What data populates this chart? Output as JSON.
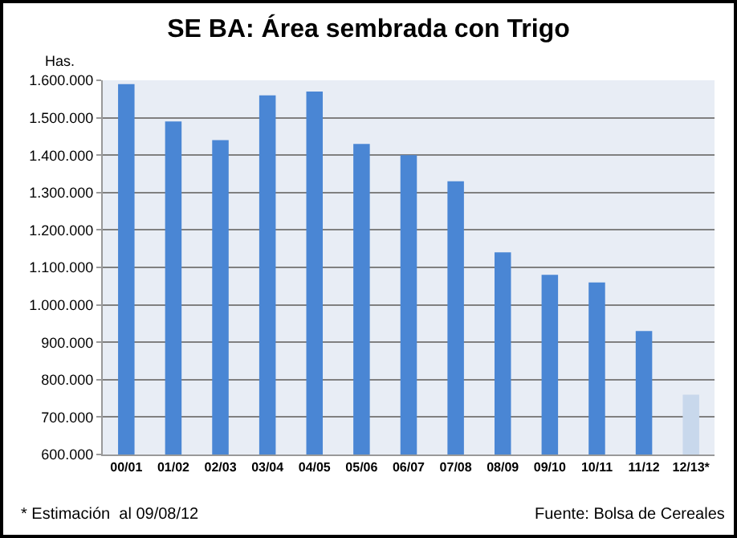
{
  "chart_data": {
    "type": "bar",
    "title": "SE BA: Área sembrada con Trigo",
    "ylabel": "Has.",
    "categories": [
      "00/01",
      "01/02",
      "02/03",
      "03/04",
      "04/05",
      "05/06",
      "06/07",
      "07/08",
      "08/09",
      "09/10",
      "10/11",
      "11/12",
      "12/13*"
    ],
    "values": [
      1590000,
      1490000,
      1440000,
      1560000,
      1570000,
      1430000,
      1400000,
      1330000,
      1140000,
      1080000,
      1060000,
      930000,
      760000
    ],
    "colors": [
      "#4a86d4",
      "#4a86d4",
      "#4a86d4",
      "#4a86d4",
      "#4a86d4",
      "#4a86d4",
      "#4a86d4",
      "#4a86d4",
      "#4a86d4",
      "#4a86d4",
      "#4a86d4",
      "#4a86d4",
      "#c8d8ec"
    ],
    "ylim": [
      600000,
      1600000
    ],
    "yticks": [
      {
        "value": 600000,
        "label": "600.000"
      },
      {
        "value": 700000,
        "label": "700.000"
      },
      {
        "value": 800000,
        "label": "800.000"
      },
      {
        "value": 900000,
        "label": "900.000"
      },
      {
        "value": 1000000,
        "label": "1.000.000"
      },
      {
        "value": 1100000,
        "label": "1.100.000"
      },
      {
        "value": 1200000,
        "label": "1.200.000"
      },
      {
        "value": 1300000,
        "label": "1.300.000"
      },
      {
        "value": 1400000,
        "label": "1.400.000"
      },
      {
        "value": 1500000,
        "label": "1.500.000"
      },
      {
        "value": 1600000,
        "label": "1.600.000"
      }
    ],
    "grid": "y",
    "annotations": [
      "* Estimación  al 09/08/12",
      "Fuente: Bolsa de Cereales"
    ]
  }
}
